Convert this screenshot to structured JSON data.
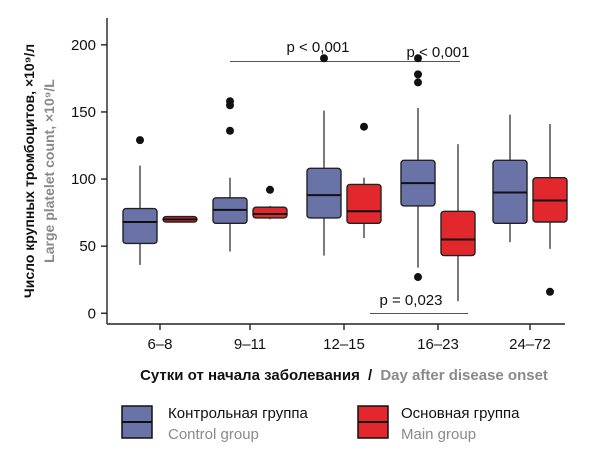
{
  "chart_data": {
    "type": "box",
    "ylabel_ru": "Число крупных тромбоцитов, ×10⁹/л",
    "ylabel_en": "Large platelet count, ×10⁹/L",
    "xlabel_ru": "Сутки от начала заболевания",
    "xlabel_sep": "/",
    "xlabel_en": "Day after disease onset",
    "ylim": [
      -8,
      220
    ],
    "yticks": [
      0,
      50,
      100,
      150,
      200
    ],
    "categories": [
      "6–8",
      "9–11",
      "12–15",
      "16–23",
      "24–72"
    ],
    "series": [
      {
        "name_ru": "Контрольная группа",
        "name_en": "Control group",
        "color": "#6a73a8",
        "boxes": [
          {
            "min": 36,
            "q1": 52,
            "median": 68,
            "q3": 78,
            "max": 110,
            "outliers": [
              129
            ]
          },
          {
            "min": 46,
            "q1": 67,
            "median": 77,
            "q3": 86,
            "max": 101,
            "outliers": [
              136,
              155,
              158
            ]
          },
          {
            "min": 43,
            "q1": 71,
            "median": 88,
            "q3": 108,
            "max": 151,
            "outliers": [
              190
            ]
          },
          {
            "min": 34,
            "q1": 80,
            "median": 97,
            "q3": 114,
            "max": 153,
            "outliers": [
              27,
              172,
              178,
              190
            ]
          },
          {
            "min": 53,
            "q1": 67,
            "median": 90,
            "q3": 114,
            "max": 148,
            "outliers": []
          }
        ]
      },
      {
        "name_ru": "Основная группа",
        "name_en": "Main group",
        "color": "#e3282d",
        "boxes": [
          {
            "min": 68,
            "q1": 68,
            "median": 70,
            "q3": 72,
            "max": 72,
            "outliers": []
          },
          {
            "min": 70,
            "q1": 71,
            "median": 74,
            "q3": 79,
            "max": 80,
            "outliers": [
              92
            ]
          },
          {
            "min": 56,
            "q1": 67,
            "median": 76,
            "q3": 96,
            "max": 101,
            "outliers": [
              139
            ]
          },
          {
            "min": 9,
            "q1": 43,
            "median": 55,
            "q3": 76,
            "max": 126,
            "outliers": []
          },
          {
            "min": 48,
            "q1": 68,
            "median": 84,
            "q3": 101,
            "max": 141,
            "outliers": [
              16
            ]
          }
        ]
      }
    ],
    "annotations": [
      {
        "text": "p < 0,001",
        "from": "9–11",
        "to": "16–23",
        "y": 200
      },
      {
        "text": "p < 0,001",
        "from": "16–23",
        "to": "16–23",
        "y": 200
      },
      {
        "text": "p = 0,023",
        "from": "16–23",
        "to": "16–23",
        "y": 0
      }
    ]
  }
}
